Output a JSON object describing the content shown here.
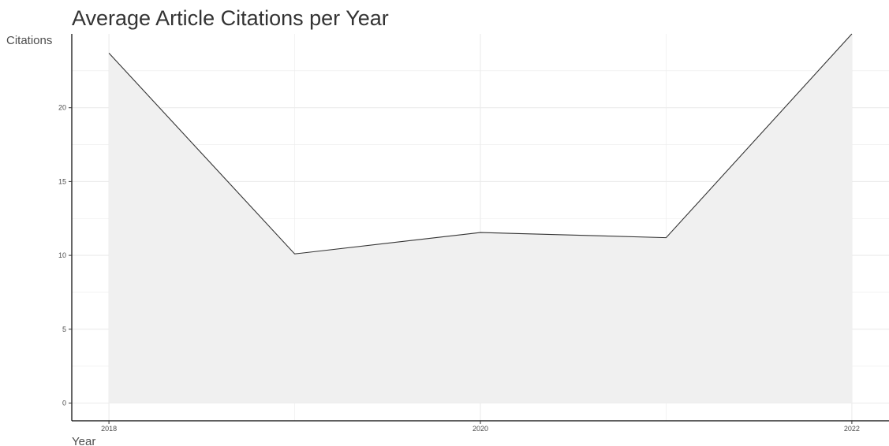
{
  "chart_data": {
    "type": "area",
    "title": "Average Article Citations per Year",
    "xlabel": "Year",
    "ylabel": "Citations",
    "x": [
      2018,
      2019,
      2020,
      2021,
      2022
    ],
    "values": [
      23.7,
      10.1,
      11.55,
      11.2,
      25.0
    ],
    "xlim": [
      2017.8,
      2022.2
    ],
    "ylim": [
      -1.2,
      25.0
    ],
    "x_ticks": [
      2018,
      2020,
      2022
    ],
    "x_tick_labels": [
      "2018",
      "2020",
      "2022"
    ],
    "y_ticks": [
      0,
      5,
      10,
      15,
      20
    ],
    "y_tick_labels": [
      "0",
      "5",
      "10",
      "15",
      "20"
    ],
    "grid": true,
    "colors": {
      "fill": "#f0f0f0",
      "line": "#333333",
      "grid": "#ebebeb",
      "axis": "#000000"
    }
  }
}
